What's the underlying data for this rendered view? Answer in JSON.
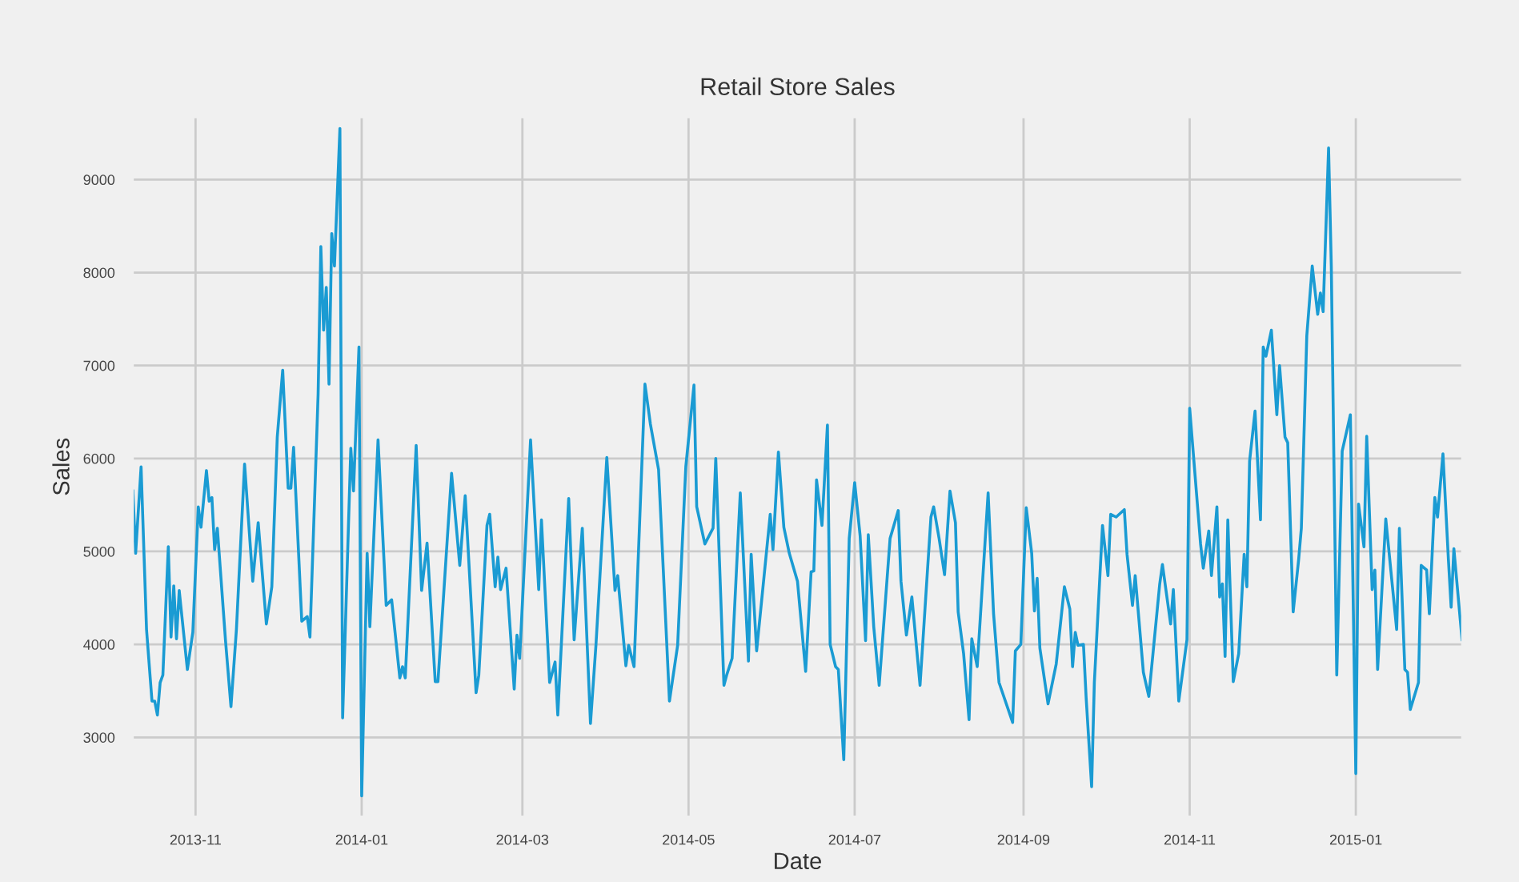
{
  "chart_data": {
    "type": "line",
    "title": "Retail Store Sales",
    "xlabel": "Date",
    "ylabel": "Sales",
    "x": [
      "2013-10-09",
      "2013-10-10",
      "2013-10-12",
      "2013-10-14",
      "2013-10-16",
      "2013-10-17",
      "2013-10-18",
      "2013-10-19",
      "2013-10-20",
      "2013-10-22",
      "2013-10-23",
      "2013-10-24",
      "2013-10-25",
      "2013-10-26",
      "2013-10-29",
      "2013-10-31",
      "2013-11-02",
      "2013-11-03",
      "2013-11-05",
      "2013-11-06",
      "2013-11-07",
      "2013-11-08",
      "2013-11-09",
      "2013-11-12",
      "2013-11-14",
      "2013-11-16",
      "2013-11-19",
      "2013-11-22",
      "2013-11-24",
      "2013-11-27",
      "2013-11-29",
      "2013-12-01",
      "2013-12-03",
      "2013-12-05",
      "2013-12-06",
      "2013-12-07",
      "2013-12-10",
      "2013-12-12",
      "2013-12-13",
      "2013-12-16",
      "2013-12-17",
      "2013-12-18",
      "2013-12-19",
      "2013-12-20",
      "2013-12-21",
      "2013-12-22",
      "2013-12-24",
      "2013-12-25",
      "2013-12-28",
      "2013-12-29",
      "2013-12-31",
      "2014-01-01",
      "2014-01-03",
      "2014-01-04",
      "2014-01-07",
      "2014-01-10",
      "2014-01-12",
      "2014-01-15",
      "2014-01-16",
      "2014-01-17",
      "2014-01-21",
      "2014-01-23",
      "2014-01-25",
      "2014-01-28",
      "2014-01-29",
      "2014-02-03",
      "2014-02-06",
      "2014-02-08",
      "2014-02-12",
      "2014-02-13",
      "2014-02-16",
      "2014-02-17",
      "2014-02-19",
      "2014-02-20",
      "2014-02-21",
      "2014-02-23",
      "2014-02-26",
      "2014-02-27",
      "2014-02-28",
      "2014-03-04",
      "2014-03-07",
      "2014-03-08",
      "2014-03-11",
      "2014-03-13",
      "2014-03-14",
      "2014-03-18",
      "2014-03-20",
      "2014-03-23",
      "2014-03-26",
      "2014-03-28",
      "2014-04-01",
      "2014-04-04",
      "2014-04-05",
      "2014-04-08",
      "2014-04-09",
      "2014-04-11",
      "2014-04-15",
      "2014-04-17",
      "2014-04-20",
      "2014-04-24",
      "2014-04-27",
      "2014-04-30",
      "2014-05-03",
      "2014-05-04",
      "2014-05-07",
      "2014-05-10",
      "2014-05-11",
      "2014-05-14",
      "2014-05-15",
      "2014-05-17",
      "2014-05-20",
      "2014-05-23",
      "2014-05-24",
      "2014-05-26",
      "2014-05-31",
      "2014-06-01",
      "2014-06-03",
      "2014-06-05",
      "2014-06-07",
      "2014-06-10",
      "2014-06-13",
      "2014-06-15",
      "2014-06-16",
      "2014-06-17",
      "2014-06-19",
      "2014-06-21",
      "2014-06-22",
      "2014-06-24",
      "2014-06-25",
      "2014-06-27",
      "2014-06-29",
      "2014-07-01",
      "2014-07-03",
      "2014-07-05",
      "2014-07-06",
      "2014-07-08",
      "2014-07-10",
      "2014-07-14",
      "2014-07-17",
      "2014-07-18",
      "2014-07-20",
      "2014-07-22",
      "2014-07-25",
      "2014-07-29",
      "2014-07-30",
      "2014-08-01",
      "2014-08-03",
      "2014-08-05",
      "2014-08-07",
      "2014-08-08",
      "2014-08-10",
      "2014-08-12",
      "2014-08-13",
      "2014-08-15",
      "2014-08-19",
      "2014-08-21",
      "2014-08-23",
      "2014-08-28",
      "2014-08-29",
      "2014-08-31",
      "2014-09-02",
      "2014-09-04",
      "2014-09-05",
      "2014-09-06",
      "2014-09-07",
      "2014-09-10",
      "2014-09-13",
      "2014-09-16",
      "2014-09-18",
      "2014-09-19",
      "2014-09-20",
      "2014-09-21",
      "2014-09-23",
      "2014-09-24",
      "2014-09-26",
      "2014-09-27",
      "2014-09-30",
      "2014-10-02",
      "2014-10-03",
      "2014-10-05",
      "2014-10-08",
      "2014-10-09",
      "2014-10-11",
      "2014-10-12",
      "2014-10-15",
      "2014-10-17",
      "2014-10-21",
      "2014-10-22",
      "2014-10-25",
      "2014-10-26",
      "2014-10-28",
      "2014-10-31",
      "2014-11-01",
      "2014-11-05",
      "2014-11-06",
      "2014-11-08",
      "2014-11-09",
      "2014-11-11",
      "2014-11-12",
      "2014-11-13",
      "2014-11-14",
      "2014-11-15",
      "2014-11-17",
      "2014-11-19",
      "2014-11-21",
      "2014-11-22",
      "2014-11-23",
      "2014-11-25",
      "2014-11-27",
      "2014-11-28",
      "2014-11-29",
      "2014-12-01",
      "2014-12-03",
      "2014-12-04",
      "2014-12-06",
      "2014-12-07",
      "2014-12-09",
      "2014-12-11",
      "2014-12-12",
      "2014-12-14",
      "2014-12-16",
      "2014-12-18",
      "2014-12-19",
      "2014-12-20",
      "2014-12-22",
      "2014-12-23",
      "2014-12-25",
      "2014-12-27",
      "2014-12-30",
      "2015-01-01",
      "2015-01-02",
      "2015-01-04",
      "2015-01-05",
      "2015-01-07",
      "2015-01-08",
      "2015-01-09",
      "2015-01-12",
      "2015-01-16",
      "2015-01-17",
      "2015-01-19",
      "2015-01-20",
      "2015-01-21",
      "2015-01-24",
      "2015-01-25",
      "2015-01-27",
      "2015-01-28",
      "2015-01-30",
      "2015-01-31",
      "2015-02-02",
      "2015-02-04",
      "2015-02-05",
      "2015-02-06",
      "2015-02-09"
    ],
    "series": [
      {
        "color": "#1a9bd3",
        "values": [
          5650,
          4980,
          5910,
          4160,
          3390,
          3390,
          3240,
          3590,
          3670,
          5050,
          4080,
          4630,
          4060,
          4580,
          3730,
          4130,
          5480,
          5260,
          5870,
          5540,
          5580,
          5020,
          5250,
          4040,
          3330,
          4160,
          5940,
          4680,
          5310,
          4220,
          4620,
          6230,
          6950,
          5680,
          5680,
          6120,
          4250,
          4300,
          4080,
          6690,
          8280,
          7380,
          7840,
          6800,
          8420,
          8070,
          9550,
          3210,
          6110,
          5650,
          7200,
          2370,
          4980,
          4190,
          6200,
          4420,
          4480,
          3640,
          3760,
          3640,
          6140,
          4580,
          5090,
          3600,
          3600,
          5840,
          4850,
          5600,
          3480,
          3670,
          5280,
          5400,
          4620,
          4940,
          4590,
          4820,
          3520,
          4100,
          3850,
          6200,
          4590,
          5340,
          3590,
          3810,
          3240,
          5570,
          4050,
          5250,
          3150,
          3990,
          6010,
          4580,
          4740,
          3770,
          3990,
          3760,
          6800,
          6370,
          5880,
          3390,
          3990,
          5910,
          6790,
          5480,
          5080,
          5250,
          6000,
          3560,
          3670,
          3850,
          5630,
          3820,
          4970,
          3930,
          5400,
          5020,
          6070,
          5260,
          4980,
          4680,
          3710,
          4780,
          4790,
          5770,
          5280,
          6360,
          4000,
          3760,
          3730,
          2760,
          5140,
          5740,
          5170,
          4040,
          5180,
          4190,
          3560,
          5140,
          5440,
          4680,
          4100,
          4510,
          3560,
          5370,
          5480,
          5140,
          4750,
          5650,
          5310,
          4350,
          3900,
          3190,
          4060,
          3760,
          5630,
          4330,
          3590,
          3160,
          3930,
          4000,
          5470,
          4980,
          4360,
          4710,
          3960,
          3360,
          3790,
          4620,
          4380,
          3760,
          4130,
          3990,
          4000,
          3420,
          2470,
          3590,
          5280,
          4740,
          5400,
          5370,
          5450,
          4970,
          4420,
          4740,
          3700,
          3440,
          4650,
          4860,
          4220,
          4590,
          3390,
          4050,
          6540,
          5080,
          4820,
          5220,
          4740,
          5480,
          4510,
          4650,
          3870,
          5340,
          3600,
          3900,
          4970,
          4620,
          5970,
          6510,
          5340,
          7200,
          7100,
          7380,
          6470,
          7000,
          6230,
          6170,
          4350,
          4910,
          5250,
          7320,
          8070,
          7550,
          7780,
          7580,
          9340,
          8070,
          3670,
          6080,
          6470,
          2610,
          5510,
          5050,
          6240,
          4590,
          4800,
          3730,
          5350,
          4160,
          5250,
          3730,
          3700,
          3300,
          3590,
          4850,
          4800,
          4330,
          5580,
          5370,
          6050,
          4910,
          4400,
          5030,
          4050
        ]
      }
    ],
    "xlim": [
      "2013-10-09",
      "2015-02-09"
    ],
    "xticks": [
      "2013-11",
      "2014-01",
      "2014-03",
      "2014-05",
      "2014-07",
      "2014-09",
      "2014-11",
      "2015-01"
    ],
    "ylim": [
      2150,
      9670
    ],
    "yticks": [
      3000,
      4000,
      5000,
      6000,
      7000,
      8000,
      9000
    ],
    "grid": true,
    "line_style": "solid",
    "marker": "none"
  }
}
